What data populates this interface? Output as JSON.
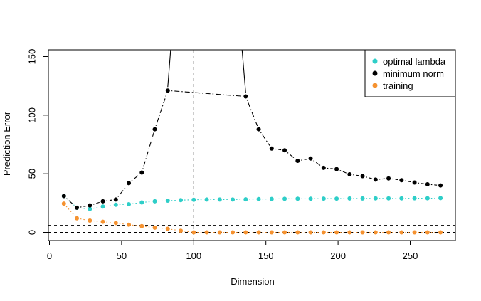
{
  "chart_data": {
    "type": "scatter",
    "title": "",
    "xlabel": "Dimension",
    "ylabel": "Prediction Error",
    "xlim": [
      0,
      280
    ],
    "ylim": [
      0,
      155
    ],
    "x_ticks": [
      0,
      50,
      100,
      150,
      200,
      250
    ],
    "y_ticks": [
      0,
      50,
      100,
      150
    ],
    "legend_position": "top-right",
    "reference_lines": {
      "vertical_x": 100,
      "horizontal_y": [
        0,
        6
      ]
    },
    "series": [
      {
        "name": "optimal lambda",
        "color": "#2ECEC8",
        "line_style": "dotted",
        "x": [
          10,
          19,
          28,
          37,
          46,
          55,
          64,
          73,
          82,
          91,
          100,
          109,
          118,
          127,
          136,
          145,
          154,
          163,
          172,
          181,
          190,
          199,
          208,
          217,
          226,
          235,
          244,
          253,
          262,
          271
        ],
        "values": [
          31,
          21,
          20,
          22,
          23.5,
          24,
          25.5,
          26.5,
          27,
          27.5,
          27.8,
          28,
          28,
          28,
          28.2,
          28.4,
          28.5,
          28.6,
          28.7,
          28.7,
          28.8,
          28.8,
          28.9,
          28.9,
          29,
          29,
          29,
          29.1,
          29.1,
          29.2
        ]
      },
      {
        "name": "minimum norm",
        "color": "#000000",
        "line_style": "dotdash",
        "x": [
          10,
          19,
          28,
          37,
          46,
          55,
          64,
          73,
          82,
          136,
          145,
          154,
          163,
          172,
          181,
          190,
          199,
          208,
          217,
          226,
          235,
          244,
          253,
          262,
          271
        ],
        "values": [
          31,
          21,
          23,
          26.5,
          28,
          42,
          51,
          88,
          121,
          116,
          88,
          71.5,
          70,
          61,
          63,
          55,
          54,
          49.5,
          48,
          45,
          46,
          44.5,
          42.5,
          41,
          40
        ]
      },
      {
        "name": "training",
        "color": "#F59230",
        "line_style": "dotted",
        "x": [
          10,
          19,
          28,
          37,
          46,
          55,
          64,
          73,
          82,
          91,
          100,
          109,
          118,
          127,
          136,
          145,
          154,
          163,
          172,
          181,
          190,
          199,
          208,
          217,
          226,
          235,
          244,
          253,
          262,
          271
        ],
        "values": [
          24.5,
          12,
          10,
          9,
          8,
          6.5,
          5.3,
          4,
          3,
          1.4,
          0,
          0,
          0,
          0,
          0,
          0,
          0,
          0,
          0,
          0,
          0,
          0,
          0,
          0,
          0,
          0,
          0,
          0,
          0,
          0
        ]
      }
    ]
  }
}
